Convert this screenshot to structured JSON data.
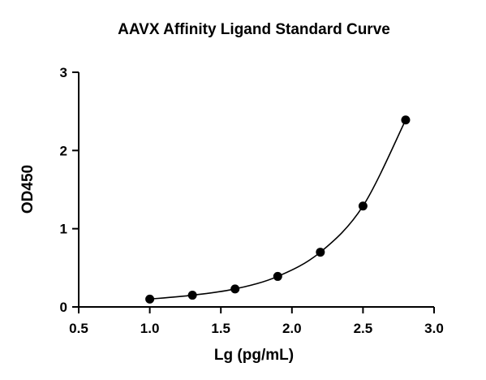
{
  "chart_data": {
    "type": "scatter",
    "title": "AAVX Affinity Ligand Standard Curve",
    "xlabel": "Lg (pg/mL)",
    "ylabel": "OD450",
    "xlim": [
      0.5,
      3.0
    ],
    "ylim": [
      0,
      3
    ],
    "xticks": [
      "0.5",
      "1.0",
      "1.5",
      "2.0",
      "2.5",
      "3.0"
    ],
    "yticks": [
      "0",
      "1",
      "2",
      "3"
    ],
    "grid": false,
    "legend": "none",
    "fit": "smooth curve through points",
    "series": [
      {
        "x": [
          1.0,
          1.3,
          1.6,
          1.9,
          2.2,
          2.5,
          2.8
        ],
        "y": [
          0.1,
          0.15,
          0.23,
          0.39,
          0.7,
          1.29,
          2.39
        ]
      }
    ]
  }
}
